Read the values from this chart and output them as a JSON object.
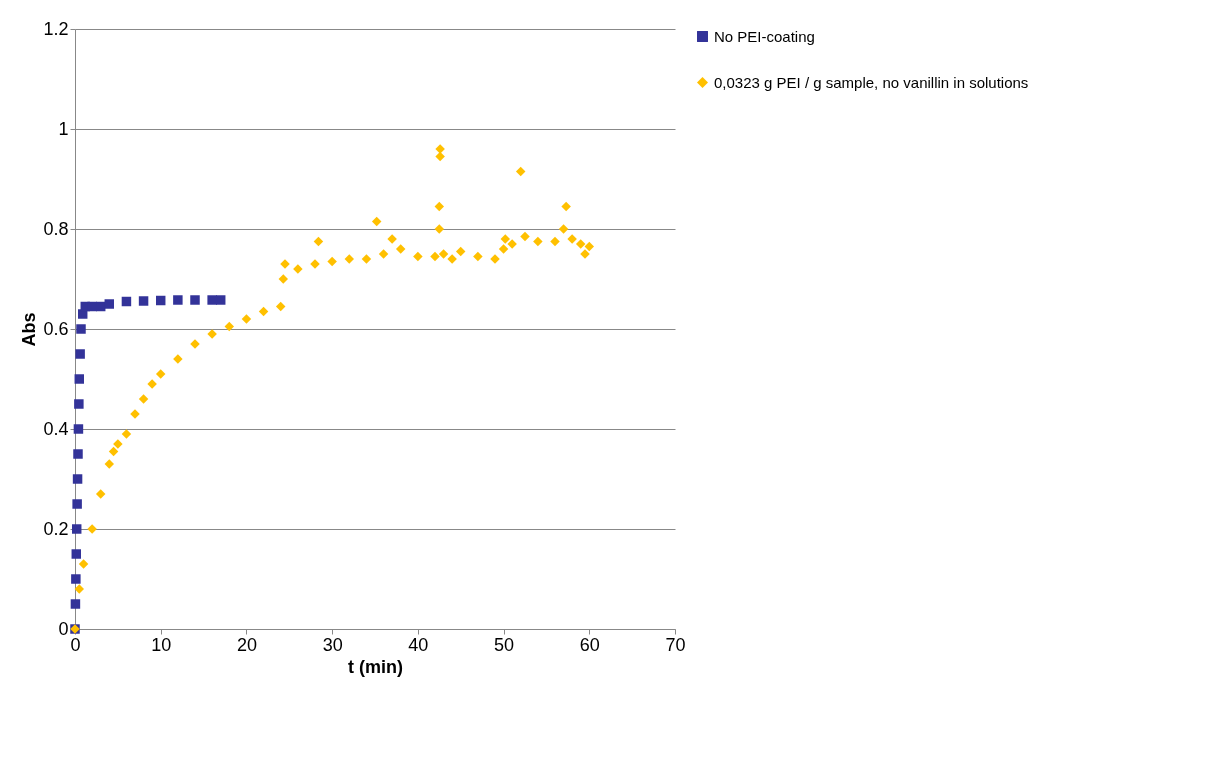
{
  "chart_data": {
    "type": "scatter",
    "xlabel": "t (min)",
    "ylabel": "Abs",
    "xlim": [
      0,
      70
    ],
    "xticks": [
      0,
      10,
      20,
      30,
      40,
      50,
      60,
      70
    ],
    "ylim": [
      0,
      1.2
    ],
    "yticks": [
      0,
      0.2,
      0.4,
      0.6,
      0.8,
      1,
      1.2
    ],
    "grid": "y",
    "legend": "right",
    "series": [
      {
        "name": "No PEI-coating",
        "color": "#333399",
        "marker": "square",
        "x": [
          0,
          0.05,
          0.1,
          0.15,
          0.2,
          0.25,
          0.3,
          0.35,
          0.4,
          0.45,
          0.5,
          0.6,
          0.7,
          0.9,
          1.2,
          2,
          3,
          4,
          6,
          8,
          10,
          12,
          14,
          16,
          17
        ],
        "values": [
          0,
          0.05,
          0.1,
          0.15,
          0.2,
          0.25,
          0.3,
          0.35,
          0.4,
          0.45,
          0.5,
          0.55,
          0.6,
          0.63,
          0.645,
          0.645,
          0.645,
          0.65,
          0.655,
          0.656,
          0.657,
          0.658,
          0.658,
          0.658,
          0.658
        ]
      },
      {
        "name": "0,0323 g PEI / g sample, no vanillin in solutions",
        "color": "#ffc000",
        "marker": "diamond",
        "x": [
          0,
          0.5,
          1,
          2,
          3,
          4,
          4.5,
          5,
          6,
          7,
          8,
          9,
          10,
          12,
          14,
          16,
          18,
          20,
          22,
          24,
          24.3,
          24.5,
          26,
          28,
          28.4,
          30,
          32,
          34,
          35.2,
          36,
          37,
          38,
          40,
          42,
          42.5,
          42.5,
          42.6,
          42.6,
          43,
          44,
          45,
          47,
          49,
          50,
          50.2,
          51,
          52,
          52.5,
          54,
          56,
          57,
          57.3,
          58,
          59,
          59.5,
          60
        ],
        "values": [
          0,
          0.08,
          0.13,
          0.2,
          0.27,
          0.33,
          0.355,
          0.37,
          0.39,
          0.43,
          0.46,
          0.49,
          0.51,
          0.54,
          0.57,
          0.59,
          0.605,
          0.62,
          0.635,
          0.645,
          0.7,
          0.73,
          0.72,
          0.73,
          0.775,
          0.735,
          0.74,
          0.74,
          0.815,
          0.75,
          0.78,
          0.76,
          0.745,
          0.745,
          0.8,
          0.845,
          0.945,
          0.96,
          0.75,
          0.74,
          0.755,
          0.745,
          0.74,
          0.76,
          0.78,
          0.77,
          0.915,
          0.785,
          0.775,
          0.775,
          0.8,
          0.845,
          0.78,
          0.77,
          0.75,
          0.765
        ]
      }
    ]
  }
}
